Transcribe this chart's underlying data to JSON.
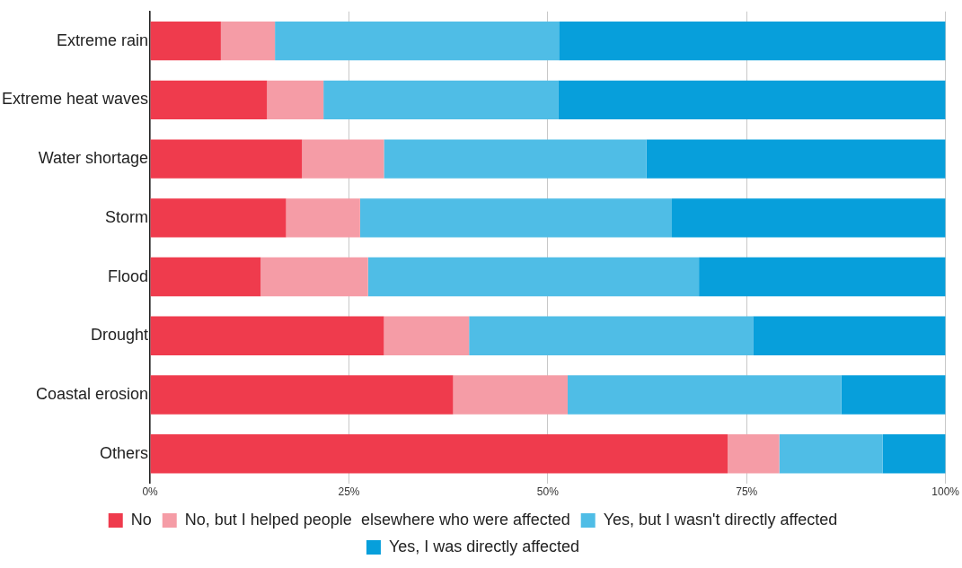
{
  "chart_data": {
    "type": "bar",
    "orientation": "horizontal",
    "stacked": true,
    "categories": [
      "Extreme rain",
      "Extreme heat waves",
      "Water shortage",
      "Storm",
      "Flood",
      "Drought",
      "Coastal erosion",
      "Others"
    ],
    "series": [
      {
        "name": "No",
        "color": "#ef3b4d",
        "values": [
          8.9,
          14.7,
          19.1,
          17.1,
          13.9,
          29.4,
          38.1,
          72.6
        ]
      },
      {
        "name": "No, but I helped people  elsewhere who were affected",
        "color": "#f59ca6",
        "values": [
          6.8,
          7.1,
          10.3,
          9.3,
          13.5,
          10.7,
          14.4,
          6.5
        ]
      },
      {
        "name": "Yes, but I wasn't directly affected",
        "color": "#4fbde6",
        "values": [
          35.7,
          29.5,
          33.0,
          39.2,
          41.6,
          35.7,
          34.4,
          13.0
        ]
      },
      {
        "name": "Yes, I was directly affected",
        "color": "#079fdb",
        "values": [
          48.6,
          48.7,
          37.6,
          34.4,
          31.0,
          24.2,
          13.1,
          7.9
        ]
      }
    ],
    "xlim": [
      0,
      100
    ],
    "xticks": [
      {
        "value": 0,
        "label": "0%"
      },
      {
        "value": 25,
        "label": "25%"
      },
      {
        "value": 50,
        "label": "50%"
      },
      {
        "value": 75,
        "label": "75%"
      },
      {
        "value": 100,
        "label": "100%"
      }
    ],
    "grid": "x",
    "legend": "bottom"
  }
}
